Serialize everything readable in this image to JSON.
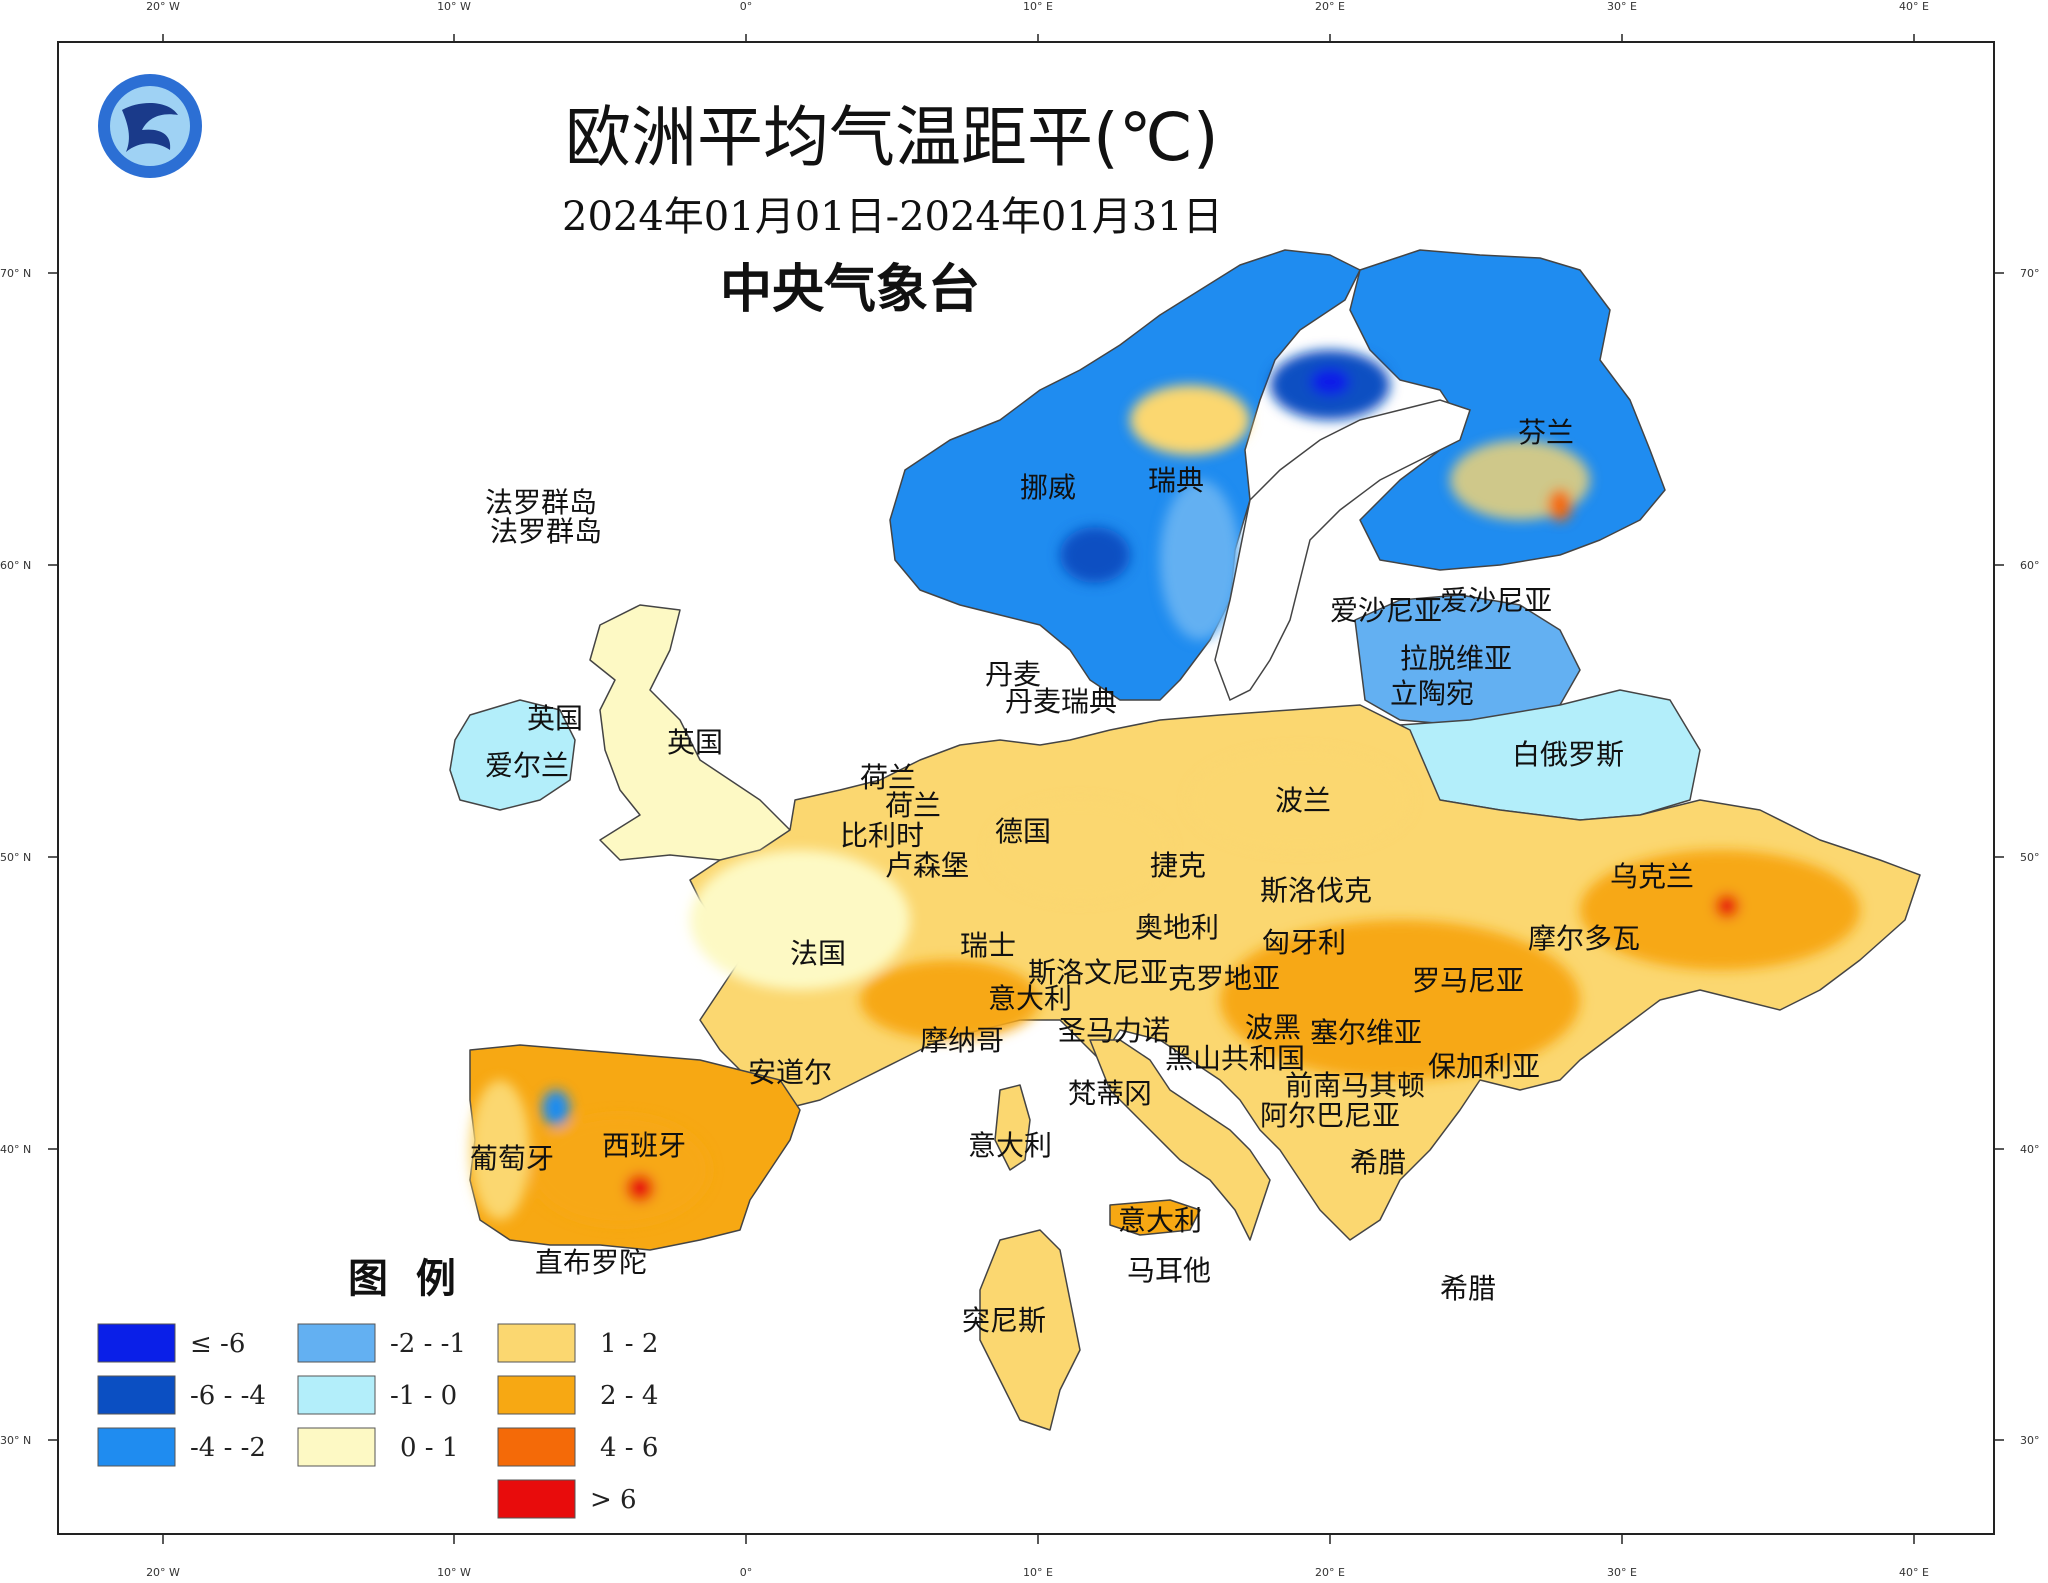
{
  "title": "欧洲平均气温距平(℃)",
  "date_range": "2024年01月01日-2024年01月31日",
  "agency": "中央气象台",
  "legend": {
    "title": "图  例",
    "items": [
      {
        "label": "≤ -6",
        "color": "#0a1fe8"
      },
      {
        "label": "-6 - -4",
        "color": "#0b4fc2"
      },
      {
        "label": "-4 - -2",
        "color": "#1f8cf0"
      },
      {
        "label": "-2 - -1",
        "color": "#63b0f2"
      },
      {
        "label": "-1 - 0",
        "color": "#b3eefa"
      },
      {
        "label": "0 - 1",
        "color": "#fdf9c4"
      },
      {
        "label": "1 - 2",
        "color": "#fbd770"
      },
      {
        "label": "2 - 4",
        "color": "#f7a813"
      },
      {
        "label": "4 - 6",
        "color": "#f46a08"
      },
      {
        "label": "> 6",
        "color": "#e80c0c"
      }
    ]
  },
  "axes": {
    "lon_top": [
      "20° W",
      "10° W",
      "0°",
      "10° E",
      "20° E",
      "30° E",
      "40° E"
    ],
    "lon_bottom": [
      "20° W",
      "10° W",
      "0°",
      "10° E",
      "20° E",
      "30° E",
      "40° E"
    ],
    "lat_left": [
      "70° N",
      "60° N",
      "50° N",
      "40° N",
      "30° N"
    ],
    "lat_right": [
      "70°",
      "60°",
      "50°",
      "40°",
      "30°"
    ]
  },
  "labels": {
    "faroe1": "法罗群岛",
    "faroe2": "法罗群岛",
    "norway": "挪威",
    "sweden": "瑞典",
    "finland": "芬兰",
    "estonia1": "爱沙尼亚",
    "estonia2": "爱沙尼亚",
    "latvia": "拉脱维亚",
    "lithuania": "立陶宛",
    "belarus": "白俄罗斯",
    "denmark": "丹麦",
    "denmark2": "丹麦瑞典",
    "uk1": "英国",
    "uk2": "英国",
    "ireland": "爱尔兰",
    "netherlands1": "荷兰",
    "netherlands2": "荷兰",
    "belgium": "比利时",
    "luxembourg": "卢森堡",
    "germany": "德国",
    "poland": "波兰",
    "czech": "捷克",
    "slovakia": "斯洛伐克",
    "ukraine": "乌克兰",
    "austria": "奥地利",
    "hungary": "匈牙利",
    "moldova": "摩尔多瓦",
    "france": "法国",
    "switzerland": "瑞士",
    "slovenia": "斯洛文尼亚",
    "croatia": "克罗地亚",
    "romania": "罗马尼亚",
    "italy1": "意大利",
    "san_marino": "圣马力诺",
    "bosnia": "波黑",
    "serbia": "塞尔维亚",
    "monaco": "摩纳哥",
    "montenegro": "黑山共和国",
    "bulgaria": "保加利亚",
    "andorra": "安道尔",
    "vatican": "梵蒂冈",
    "north_macedonia": "前南马其顿",
    "albania": "阿尔巴尼亚",
    "portugal": "葡萄牙",
    "spain": "西班牙",
    "italy2": "意大利",
    "greece1": "希腊",
    "italy3": "意大利",
    "malta": "马耳他",
    "gibraltar": "直布罗陀",
    "tunisia": "突尼斯",
    "greece2": "希腊"
  }
}
